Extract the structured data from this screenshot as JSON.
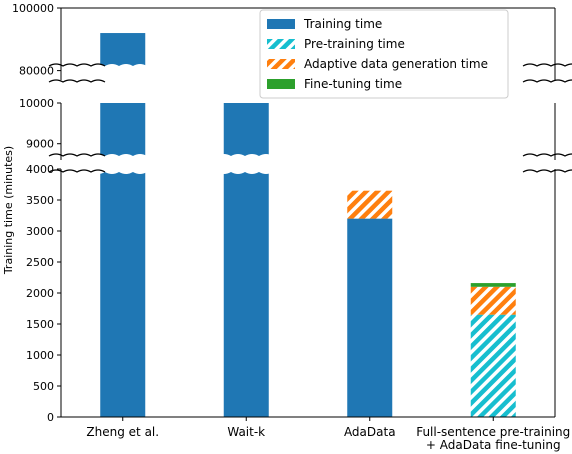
{
  "chart_data": {
    "type": "bar",
    "stacked": true,
    "broken_y_axis": true,
    "ylabel": "Training time (minutes)",
    "categories": [
      "Zheng et al.",
      "Wait-k",
      "AdaData",
      "Full-sentence pre-training\n+ AdaData fine-tuning"
    ],
    "category_lines": [
      [
        "Zheng et al."
      ],
      [
        "Wait-k"
      ],
      [
        "AdaData"
      ],
      [
        "Full-sentence pre-training",
        "+ AdaData fine-tuning"
      ]
    ],
    "series": [
      {
        "name": "Training time",
        "color": "#1f77b4",
        "pattern": "solid",
        "values": [
          92000,
          10000,
          3200,
          0
        ]
      },
      {
        "name": "Pre-training time",
        "color": "#17becf",
        "pattern": "hatch",
        "values": [
          0,
          0,
          0,
          1650
        ]
      },
      {
        "name": "Adaptive data generation time",
        "color": "#ff7f0e",
        "pattern": "hatch",
        "values": [
          0,
          0,
          450,
          450
        ]
      },
      {
        "name": "Fine-tuning time",
        "color": "#2ca02c",
        "pattern": "solid",
        "values": [
          0,
          0,
          0,
          60
        ]
      }
    ],
    "segments": [
      {
        "ylim": [
          0,
          4000
        ],
        "yticks": [
          0,
          500,
          1000,
          1500,
          2000,
          2500,
          3000,
          3500,
          4000
        ]
      },
      {
        "ylim": [
          8600,
          10000
        ],
        "yticks": [
          9000,
          10000
        ]
      },
      {
        "ylim": [
          77000,
          100000
        ],
        "yticks": [
          80000,
          100000
        ]
      }
    ],
    "legend_position": "top-right",
    "grid": false
  }
}
